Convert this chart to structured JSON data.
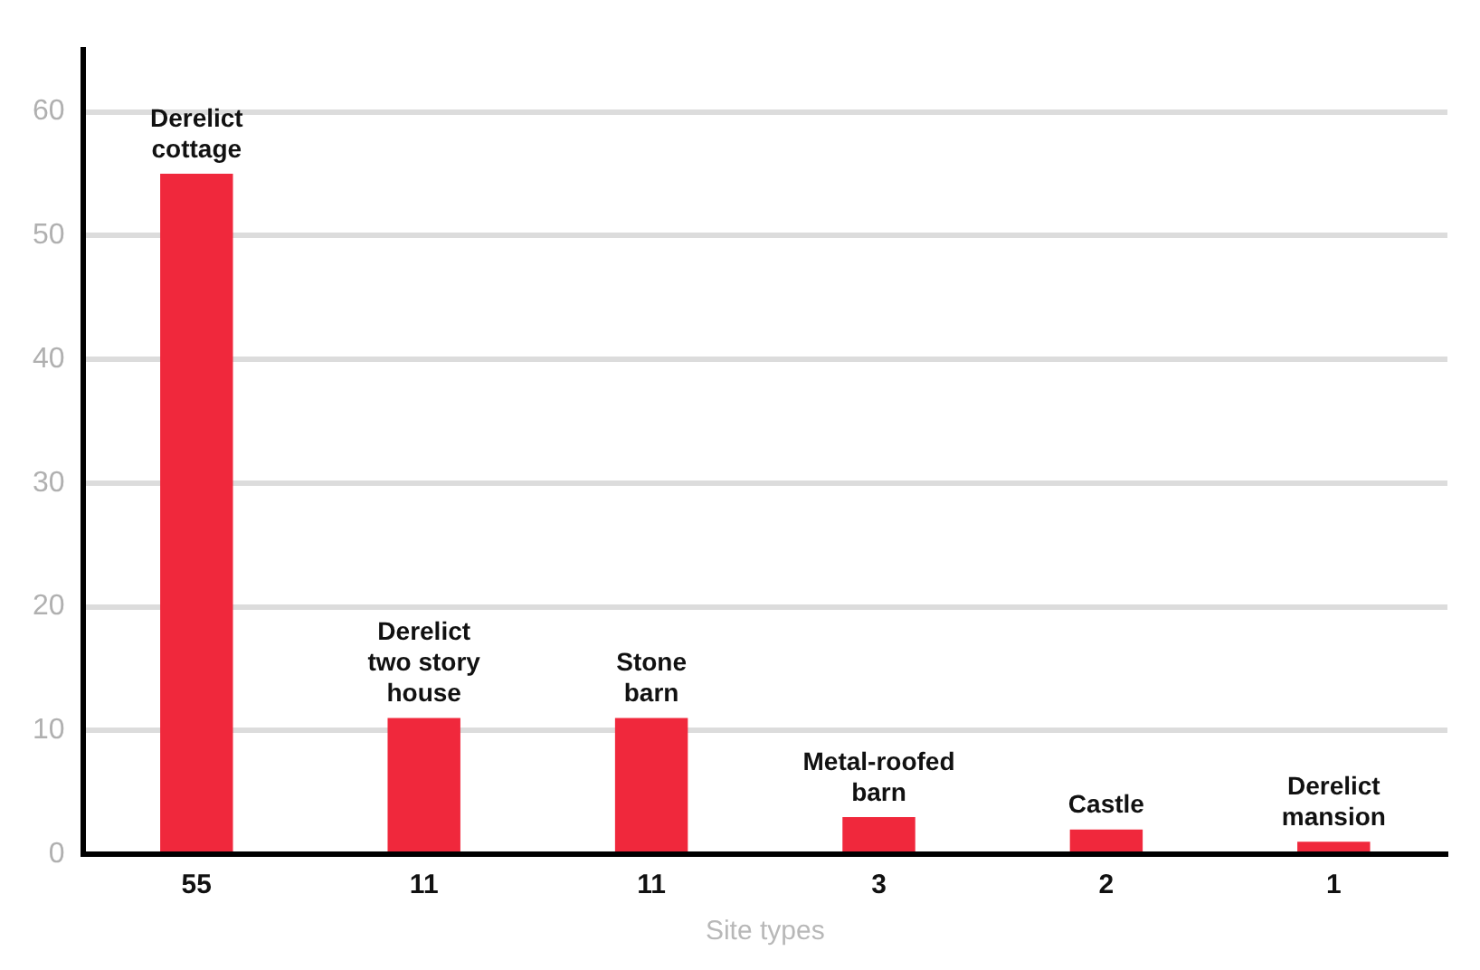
{
  "chart_data": {
    "type": "bar",
    "xlabel": "Site types",
    "categories": [
      "Derelict cottage",
      "Derelict two story house",
      "Stone barn",
      "Metal-roofed barn",
      "Castle",
      "Derelict mansion"
    ],
    "values": [
      55,
      11,
      11,
      3,
      2,
      1
    ],
    "color": "#f0283c",
    "ylim": [
      0,
      65
    ],
    "yticks": [
      0,
      10,
      20,
      30,
      40,
      50,
      60
    ],
    "grid": "y",
    "legend": false,
    "data_labels": true
  }
}
